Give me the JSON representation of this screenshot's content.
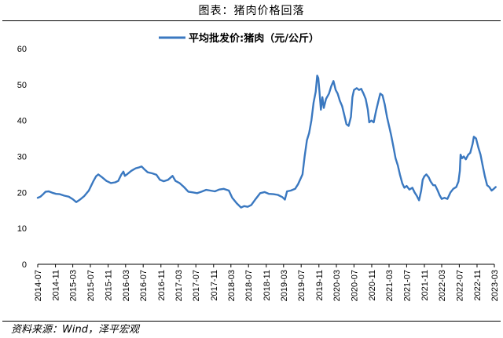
{
  "figure": {
    "title": "图表：猪肉价格回落",
    "source": "资料来源：Wind，泽平宏观"
  },
  "colors": {
    "series": "#3a78c0",
    "axis": "#000000"
  },
  "chart_data": {
    "type": "line",
    "title": "",
    "xlabel": "",
    "ylabel": "",
    "ylim": [
      0,
      60
    ],
    "yticks": [
      0,
      10,
      20,
      30,
      40,
      50,
      60
    ],
    "xlim": [
      "2014-07",
      "2023-03"
    ],
    "xticks": [
      "2014-07",
      "2014-11",
      "2015-03",
      "2015-07",
      "2015-11",
      "2016-03",
      "2016-07",
      "2016-11",
      "2017-03",
      "2017-07",
      "2017-11",
      "2018-03",
      "2018-07",
      "2018-11",
      "2019-03",
      "2019-07",
      "2019-11",
      "2020-03",
      "2020-07",
      "2020-11",
      "2021-03",
      "2021-07",
      "2021-11",
      "2022-03",
      "2022-07",
      "2022-11",
      "2023-03"
    ],
    "grid": false,
    "legend": "top-center",
    "series": [
      {
        "name": "平均批发价:猪肉（元/公斤）",
        "points": [
          [
            "2014-07-01",
            18.5
          ],
          [
            "2014-07-20",
            18.8
          ],
          [
            "2014-08-10",
            19.6
          ],
          [
            "2014-08-25",
            20.2
          ],
          [
            "2014-09-15",
            20.3
          ],
          [
            "2014-10-10",
            19.9
          ],
          [
            "2014-11-05",
            19.6
          ],
          [
            "2014-12-01",
            19.5
          ],
          [
            "2015-01-01",
            19.1
          ],
          [
            "2015-02-01",
            18.8
          ],
          [
            "2015-03-01",
            18.1
          ],
          [
            "2015-03-25",
            17.3
          ],
          [
            "2015-04-20",
            18.0
          ],
          [
            "2015-05-20",
            19.0
          ],
          [
            "2015-06-20",
            20.5
          ],
          [
            "2015-07-20",
            23.0
          ],
          [
            "2015-08-10",
            24.5
          ],
          [
            "2015-08-25",
            25.0
          ],
          [
            "2015-09-20",
            24.2
          ],
          [
            "2015-10-20",
            23.2
          ],
          [
            "2015-11-20",
            22.6
          ],
          [
            "2015-12-20",
            22.8
          ],
          [
            "2016-01-10",
            23.2
          ],
          [
            "2016-02-01",
            25.0
          ],
          [
            "2016-02-15",
            25.8
          ],
          [
            "2016-02-25",
            24.6
          ],
          [
            "2016-03-10",
            25.0
          ],
          [
            "2016-04-10",
            26.0
          ],
          [
            "2016-05-10",
            26.7
          ],
          [
            "2016-06-05",
            27.0
          ],
          [
            "2016-06-20",
            27.2
          ],
          [
            "2016-07-10",
            26.4
          ],
          [
            "2016-08-01",
            25.6
          ],
          [
            "2016-09-01",
            25.3
          ],
          [
            "2016-10-01",
            24.9
          ],
          [
            "2016-10-25",
            23.5
          ],
          [
            "2016-11-20",
            23.1
          ],
          [
            "2016-12-20",
            23.5
          ],
          [
            "2017-01-20",
            24.6
          ],
          [
            "2017-02-10",
            23.2
          ],
          [
            "2017-03-10",
            22.6
          ],
          [
            "2017-04-10",
            21.5
          ],
          [
            "2017-05-10",
            20.2
          ],
          [
            "2017-06-10",
            20.0
          ],
          [
            "2017-07-10",
            19.8
          ],
          [
            "2017-08-10",
            20.2
          ],
          [
            "2017-09-10",
            20.7
          ],
          [
            "2017-10-10",
            20.5
          ],
          [
            "2017-11-10",
            20.3
          ],
          [
            "2017-12-10",
            20.8
          ],
          [
            "2018-01-10",
            21.0
          ],
          [
            "2018-02-15",
            20.5
          ],
          [
            "2018-03-10",
            18.5
          ],
          [
            "2018-04-10",
            17.0
          ],
          [
            "2018-05-10",
            15.8
          ],
          [
            "2018-06-01",
            16.2
          ],
          [
            "2018-06-25",
            16.0
          ],
          [
            "2018-07-20",
            16.5
          ],
          [
            "2018-08-20",
            18.2
          ],
          [
            "2018-09-20",
            19.8
          ],
          [
            "2018-10-20",
            20.1
          ],
          [
            "2018-11-20",
            19.6
          ],
          [
            "2018-12-20",
            19.5
          ],
          [
            "2019-01-20",
            19.3
          ],
          [
            "2019-02-20",
            18.7
          ],
          [
            "2019-03-10",
            18.0
          ],
          [
            "2019-03-25",
            20.3
          ],
          [
            "2019-04-20",
            20.5
          ],
          [
            "2019-05-20",
            21.0
          ],
          [
            "2019-06-10",
            22.3
          ],
          [
            "2019-07-10",
            25.0
          ],
          [
            "2019-07-25",
            30.0
          ],
          [
            "2019-08-10",
            34.5
          ],
          [
            "2019-08-25",
            36.5
          ],
          [
            "2019-09-10",
            40.0
          ],
          [
            "2019-09-25",
            45.0
          ],
          [
            "2019-10-10",
            48.0
          ],
          [
            "2019-10-20",
            52.5
          ],
          [
            "2019-10-28",
            51.8
          ],
          [
            "2019-11-05",
            48.0
          ],
          [
            "2019-11-15",
            43.0
          ],
          [
            "2019-11-25",
            46.5
          ],
          [
            "2019-12-05",
            43.5
          ],
          [
            "2019-12-20",
            46.0
          ],
          [
            "2020-01-10",
            47.5
          ],
          [
            "2020-01-25",
            49.5
          ],
          [
            "2020-02-10",
            51.0
          ],
          [
            "2020-02-25",
            48.5
          ],
          [
            "2020-03-10",
            47.5
          ],
          [
            "2020-03-25",
            45.5
          ],
          [
            "2020-04-10",
            44.0
          ],
          [
            "2020-04-25",
            41.5
          ],
          [
            "2020-05-10",
            39.0
          ],
          [
            "2020-05-25",
            38.5
          ],
          [
            "2020-06-10",
            41.0
          ],
          [
            "2020-06-20",
            46.5
          ],
          [
            "2020-07-01",
            48.5
          ],
          [
            "2020-07-20",
            49.0
          ],
          [
            "2020-08-05",
            48.5
          ],
          [
            "2020-08-20",
            48.8
          ],
          [
            "2020-09-05",
            47.5
          ],
          [
            "2020-09-20",
            46.0
          ],
          [
            "2020-10-05",
            43.0
          ],
          [
            "2020-10-15",
            39.5
          ],
          [
            "2020-10-30",
            40.0
          ],
          [
            "2020-11-15",
            39.5
          ],
          [
            "2020-11-30",
            42.5
          ],
          [
            "2020-12-15",
            45.0
          ],
          [
            "2020-12-30",
            47.5
          ],
          [
            "2021-01-15",
            47.0
          ],
          [
            "2021-01-30",
            44.5
          ],
          [
            "2021-02-15",
            41.0
          ],
          [
            "2021-03-01",
            38.5
          ],
          [
            "2021-03-15",
            36.0
          ],
          [
            "2021-03-30",
            33.0
          ],
          [
            "2021-04-15",
            29.5
          ],
          [
            "2021-05-01",
            27.5
          ],
          [
            "2021-05-15",
            25.0
          ],
          [
            "2021-06-01",
            22.5
          ],
          [
            "2021-06-15",
            21.3
          ],
          [
            "2021-07-01",
            21.8
          ],
          [
            "2021-07-20",
            20.8
          ],
          [
            "2021-08-10",
            21.3
          ],
          [
            "2021-08-25",
            20.0
          ],
          [
            "2021-09-10",
            19.0
          ],
          [
            "2021-09-25",
            17.8
          ],
          [
            "2021-10-10",
            20.5
          ],
          [
            "2021-10-20",
            23.5
          ],
          [
            "2021-11-01",
            24.5
          ],
          [
            "2021-11-15",
            25.0
          ],
          [
            "2021-12-01",
            24.2
          ],
          [
            "2021-12-15",
            23.0
          ],
          [
            "2022-01-01",
            22.0
          ],
          [
            "2022-01-15",
            22.0
          ],
          [
            "2022-02-01",
            20.5
          ],
          [
            "2022-02-15",
            19.2
          ],
          [
            "2022-03-01",
            18.2
          ],
          [
            "2022-03-20",
            18.5
          ],
          [
            "2022-04-10",
            18.2
          ],
          [
            "2022-05-01",
            20.0
          ],
          [
            "2022-05-20",
            21.0
          ],
          [
            "2022-06-10",
            21.5
          ],
          [
            "2022-06-25",
            23.0
          ],
          [
            "2022-07-05",
            26.0
          ],
          [
            "2022-07-10",
            30.5
          ],
          [
            "2022-07-20",
            29.5
          ],
          [
            "2022-08-01",
            30.0
          ],
          [
            "2022-08-15",
            29.2
          ],
          [
            "2022-09-01",
            30.5
          ],
          [
            "2022-09-15",
            31.0
          ],
          [
            "2022-10-01",
            33.5
          ],
          [
            "2022-10-10",
            35.5
          ],
          [
            "2022-10-25",
            35.0
          ],
          [
            "2022-11-10",
            32.5
          ],
          [
            "2022-11-25",
            30.5
          ],
          [
            "2022-12-10",
            27.5
          ],
          [
            "2022-12-25",
            24.5
          ],
          [
            "2023-01-10",
            22.0
          ],
          [
            "2023-01-25",
            21.5
          ],
          [
            "2023-02-10",
            20.5
          ],
          [
            "2023-02-25",
            21.0
          ],
          [
            "2023-03-10",
            21.5
          ]
        ]
      }
    ]
  }
}
